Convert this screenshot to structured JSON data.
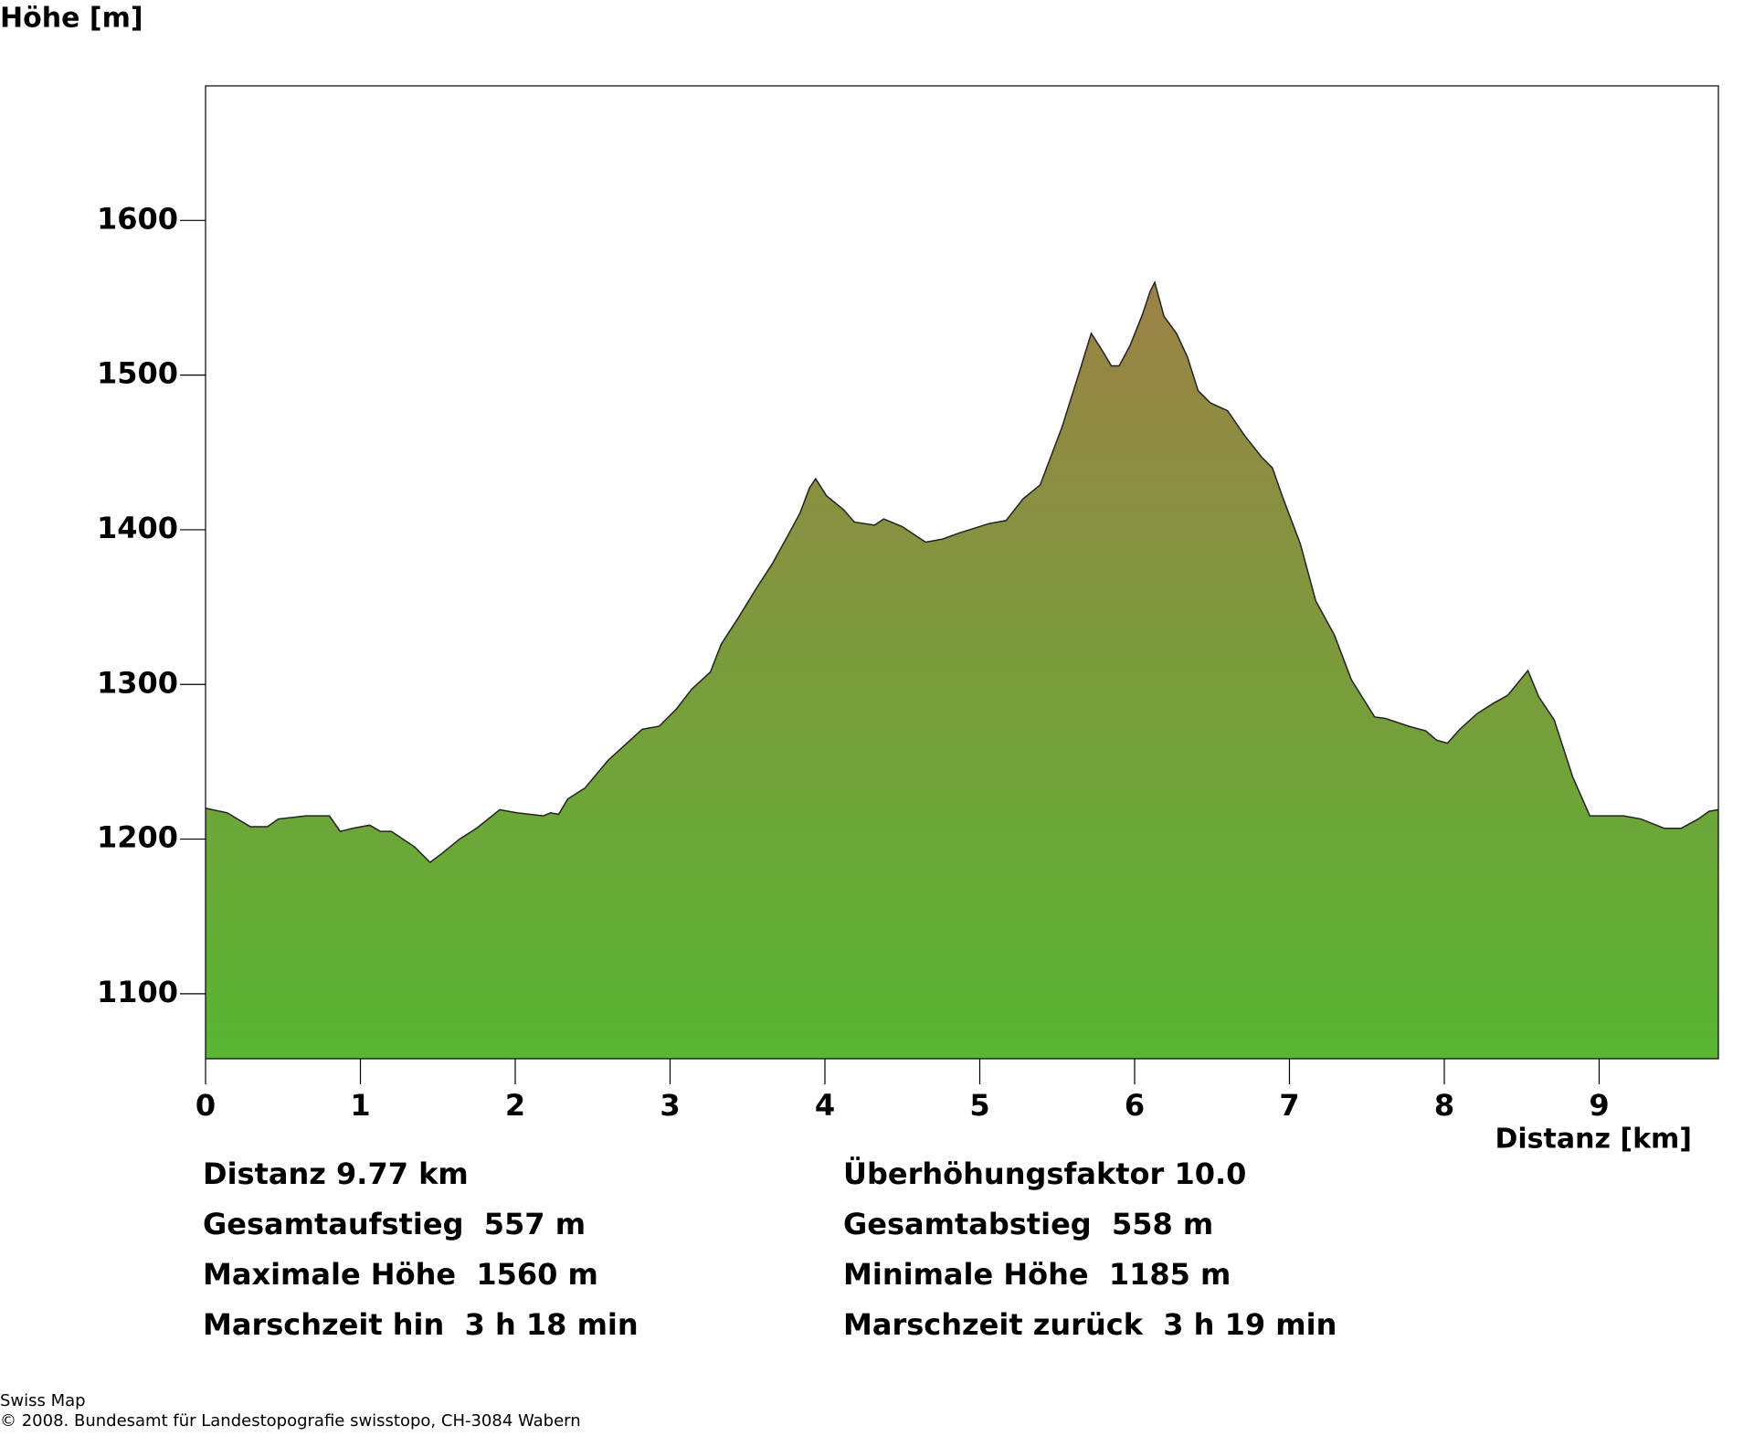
{
  "chart_data": {
    "type": "area",
    "y_label": "Höhe [m]",
    "x_label": "Distanz [km]",
    "x": [
      0,
      0.14,
      0.29,
      0.4,
      0.47,
      0.65,
      0.8,
      0.87,
      0.95,
      1.06,
      1.13,
      1.2,
      1.35,
      1.45,
      1.53,
      1.64,
      1.75,
      1.9,
      2.01,
      2.18,
      2.23,
      2.28,
      2.34,
      2.45,
      2.6,
      2.71,
      2.82,
      2.93,
      3.04,
      3.14,
      3.26,
      3.33,
      3.44,
      3.55,
      3.66,
      3.77,
      3.84,
      3.9,
      3.94,
      4.01,
      4.12,
      4.19,
      4.32,
      4.38,
      4.5,
      4.65,
      4.76,
      4.87,
      5.06,
      5.17,
      5.28,
      5.39,
      5.53,
      5.64,
      5.72,
      5.79,
      5.85,
      5.9,
      5.97,
      6.05,
      6.1,
      6.13,
      6.19,
      6.27,
      6.34,
      6.41,
      6.49,
      6.6,
      6.71,
      6.82,
      6.89,
      6.96,
      7.07,
      7.17,
      7.29,
      7.4,
      7.55,
      7.62,
      7.77,
      7.88,
      7.95,
      8.02,
      8.1,
      8.21,
      8.32,
      8.41,
      8.54,
      8.61,
      8.71,
      8.83,
      8.94,
      9.02,
      9.16,
      9.27,
      9.42,
      9.53,
      9.64,
      9.71,
      9.77
    ],
    "values": [
      1220,
      1217,
      1208,
      1208,
      1213,
      1215,
      1215,
      1205,
      1207,
      1209,
      1205,
      1205,
      1195,
      1185,
      1191,
      1200,
      1207,
      1219,
      1217,
      1215,
      1217,
      1216,
      1226,
      1233,
      1251,
      1261,
      1271,
      1273,
      1284,
      1297,
      1308,
      1326,
      1343,
      1361,
      1378,
      1398,
      1411,
      1427,
      1433,
      1422,
      1413,
      1405,
      1403,
      1407,
      1402,
      1392,
      1394,
      1398,
      1404,
      1406,
      1420,
      1429,
      1466,
      1501,
      1527,
      1516,
      1506,
      1506,
      1519,
      1539,
      1554,
      1560,
      1538,
      1527,
      1512,
      1490,
      1482,
      1477,
      1461,
      1447,
      1440,
      1420,
      1391,
      1354,
      1332,
      1303,
      1279,
      1278,
      1273,
      1270,
      1264,
      1262,
      1271,
      1281,
      1288,
      1293,
      1309,
      1292,
      1277,
      1240,
      1215,
      1215,
      1215,
      1213,
      1207,
      1207,
      1213,
      1218,
      1219
    ],
    "colors": [
      "#9c8146",
      "#58b632"
    ],
    "xlim": [
      0,
      9.77
    ],
    "ylim": [
      1058,
      1687
    ],
    "xticks": [
      0,
      1,
      2,
      3,
      4,
      5,
      6,
      7,
      8,
      9
    ],
    "yticks": [
      1100,
      1200,
      1300,
      1400,
      1500,
      1600
    ]
  },
  "stats": {
    "left": [
      "Distanz 9.77 km",
      "Gesamtaufstieg  557 m",
      "Maximale Höhe  1560 m",
      "Marschzeit hin  3 h 18 min"
    ],
    "right": [
      "Überhöhungsfaktor 10.0",
      "Gesamtabstieg  558 m",
      "Minimale Höhe  1185 m",
      "Marschzeit zurück  3 h 19 min"
    ]
  },
  "footer": [
    "Swiss Map",
    "© 2008. Bundesamt für Landestopografie swisstopo, CH-3084 Wabern"
  ]
}
